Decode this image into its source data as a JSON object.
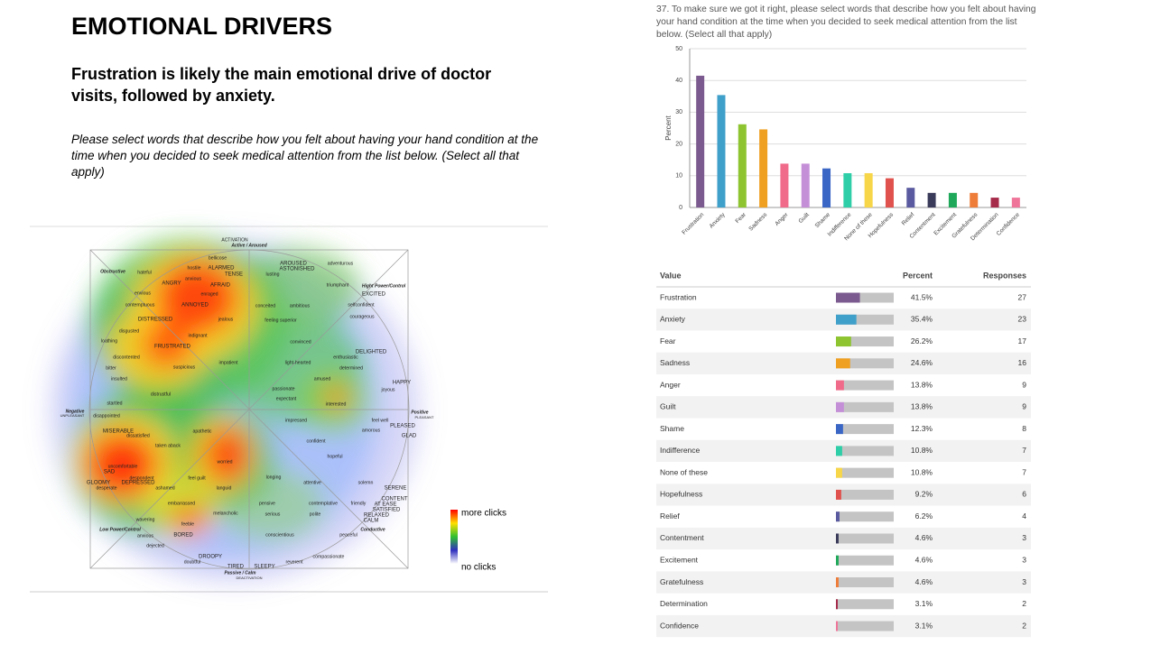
{
  "header": {
    "title": "EMOTIONAL DRIVERS",
    "subtitle": "Frustration is likely the main emotional drive of doctor visits, followed by anxiety.",
    "question": "Please select words that describe how you felt about having your hand condition at the time when you decided to seek medical attention from the list below. (Select all that apply)"
  },
  "heatmap": {
    "words": [
      "ACTIVATION",
      "Active / Aroused",
      "Obstructive",
      "hateful",
      "bellicose",
      "hostile",
      "ALARMED",
      "TENSE",
      "anxious",
      "AFRAID",
      "ANGRY",
      "enraged",
      "envious",
      "contemptuous",
      "ANNOYED",
      "DISTRESSED",
      "jealous",
      "disgusted",
      "indignant",
      "loathing",
      "FRUSTRATED",
      "discontented",
      "bitter",
      "suspicious",
      "insulted",
      "distrustful",
      "impatient",
      "lusting",
      "AROUSED",
      "ASTONISHED",
      "adventurous",
      "triumphant",
      "Hight Power/Control",
      "EXCITED",
      "conceited",
      "ambitious",
      "selfconfident",
      "courageous",
      "feeling superior",
      "convinced",
      "DELIGHTED",
      "enthusiastic",
      "light-hearted",
      "determined",
      "amused",
      "HAPPY",
      "joyous",
      "passionate",
      "expectant",
      "interested",
      "Negative",
      "UNPLEASANT",
      "Positive",
      "PLEASANT",
      "startled",
      "disappointed",
      "impressed",
      "feel well",
      "PLEASED",
      "amorous",
      "GLAD",
      "MISERABLE",
      "dissatisfied",
      "confident",
      "taken aback",
      "apathetic",
      "hopeful",
      "worried",
      "uncomfortable",
      "SAD",
      "feel guilt",
      "longing",
      "attentive",
      "solemn",
      "SERENE",
      "GLOOMY",
      "despondent",
      "DEPRESSED",
      "desperate",
      "ashamed",
      "languid",
      "CONTENT",
      "embarrassed",
      "pensive",
      "contemplative",
      "friendly",
      "AT EASE",
      "SATISFIED",
      "serious",
      "polite",
      "melancholic",
      "RELAXED",
      "CALM",
      "wavering",
      "Low Power/Control",
      "Conductive",
      "feeble",
      "anxious",
      "BORED",
      "conscientious",
      "peaceful",
      "dejected",
      "DROOPY",
      "compassionate",
      "doubtful",
      "reverent",
      "TIRED",
      "SLEEPY",
      "Passive / Calm",
      "DEACTIVATION"
    ],
    "legend_high": "more clicks",
    "legend_low": "no clicks"
  },
  "chart_data": {
    "type": "bar",
    "title": "37. To make sure we got it right, please select words that describe how you felt about having your hand condition at the time when you decided to seek medical attention from the list below. (Select all that apply)",
    "y_label": "Percent",
    "categories": [
      "Frustration",
      "Anxiety",
      "Fear",
      "Sadness",
      "Anger",
      "Guilt",
      "Shame",
      "Indifference",
      "None of these",
      "Hopefulness",
      "Relief",
      "Contentment",
      "Excitement",
      "Gratefulness",
      "Determination",
      "Confidence"
    ],
    "values": [
      41.5,
      35.4,
      26.2,
      24.6,
      13.8,
      13.8,
      12.3,
      10.8,
      10.8,
      9.2,
      6.2,
      4.6,
      4.6,
      4.6,
      3.1,
      3.1
    ],
    "colors": [
      "#7b5a8f",
      "#3fa0c9",
      "#8dc42f",
      "#f0a020",
      "#f06a8a",
      "#c58fd8",
      "#3a66c6",
      "#2ecfa8",
      "#f7d64a",
      "#e0524d",
      "#5a5aa0",
      "#3a3a5a",
      "#1fa85a",
      "#ee7d3a",
      "#a62a4a",
      "#f0759a"
    ],
    "ylim": [
      0,
      50
    ],
    "yticks": [
      0,
      10,
      20,
      30,
      40,
      50
    ],
    "grid": true
  },
  "table": {
    "columns": [
      "Value",
      "Percent",
      "Responses"
    ],
    "rows": [
      [
        "Frustration",
        "41.5%",
        27
      ],
      [
        "Anxiety",
        "35.4%",
        23
      ],
      [
        "Fear",
        "26.2%",
        17
      ],
      [
        "Sadness",
        "24.6%",
        16
      ],
      [
        "Anger",
        "13.8%",
        9
      ],
      [
        "Guilt",
        "13.8%",
        9
      ],
      [
        "Shame",
        "12.3%",
        8
      ],
      [
        "Indifference",
        "10.8%",
        7
      ],
      [
        "None of these",
        "10.8%",
        7
      ],
      [
        "Hopefulness",
        "9.2%",
        6
      ],
      [
        "Relief",
        "6.2%",
        4
      ],
      [
        "Contentment",
        "4.6%",
        3
      ],
      [
        "Excitement",
        "4.6%",
        3
      ],
      [
        "Gratefulness",
        "4.6%",
        3
      ],
      [
        "Determination",
        "3.1%",
        2
      ],
      [
        "Confidence",
        "3.1%",
        2
      ]
    ]
  }
}
